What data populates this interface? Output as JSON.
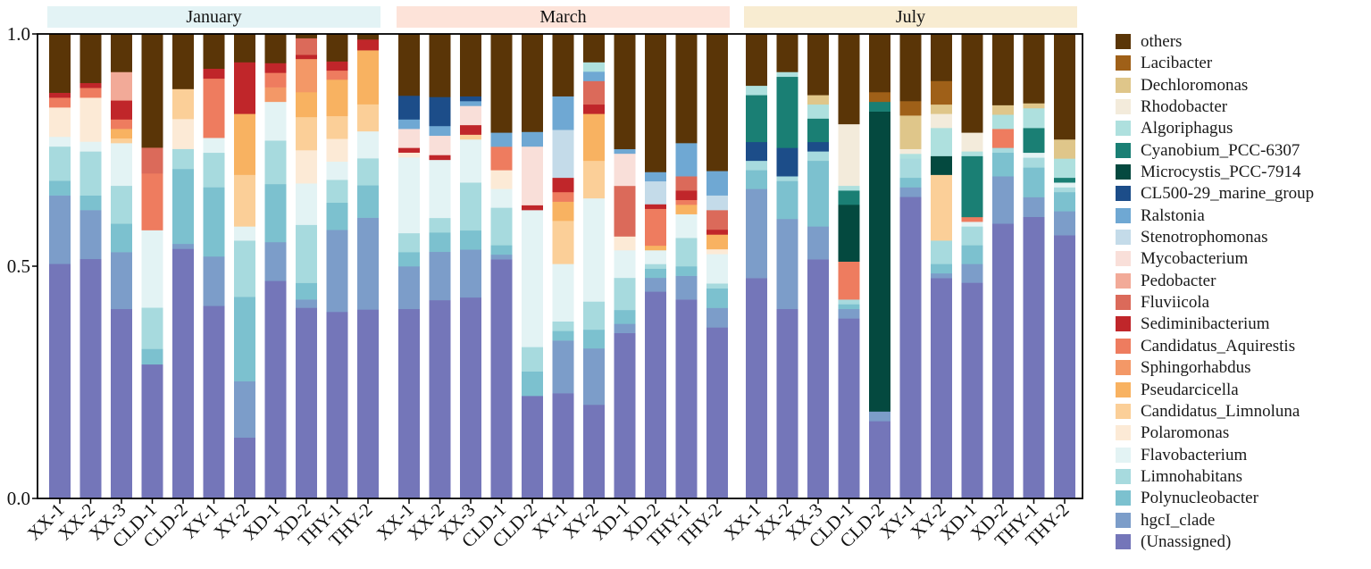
{
  "chart_data": {
    "type": "bar",
    "stacked": true,
    "ylim": [
      0,
      1
    ],
    "yticks": [
      "0.0",
      "0.5",
      "1.0"
    ],
    "panels": [
      "January",
      "March",
      "July"
    ],
    "categories": [
      "XX-1",
      "XX-2",
      "XX-3",
      "CLD-1",
      "CLD-2",
      "XY-1",
      "XY-2",
      "XD-1",
      "XD-2",
      "THY-1",
      "THY-2"
    ],
    "legend_position": "right",
    "grid": false,
    "series": [
      {
        "name": "(Unassigned)",
        "color": "#7476b9",
        "values": [
          [
            0.48,
            0.49,
            0.4,
            0.26,
            0.5,
            0.39,
            0.13,
            0.45,
            0.46,
            0.41,
            0.35
          ],
          [
            0.4,
            0.41,
            0.42,
            0.51,
            0.21,
            0.22,
            0.2,
            0.36,
            0.45,
            0.42,
            0.35
          ],
          [
            0.47,
            0.4,
            0.51,
            0.38,
            0.16,
            0.63,
            0.47,
            0.46,
            0.58,
            0.57,
            0.55
          ]
        ]
      },
      {
        "name": "hgcI_clade",
        "color": "#7c9dc9",
        "values": [
          [
            0.14,
            0.1,
            0.12,
            0.0,
            0.01,
            0.1,
            0.12,
            0.08,
            0.02,
            0.18,
            0.17
          ],
          [
            0.09,
            0.1,
            0.1,
            0.01,
            0.0,
            0.11,
            0.12,
            0.02,
            0.03,
            0.05,
            0.04
          ],
          [
            0.19,
            0.19,
            0.07,
            0.02,
            0.02,
            0.02,
            0.01,
            0.04,
            0.1,
            0.04,
            0.05
          ]
        ]
      },
      {
        "name": "Polynucleobacter",
        "color": "#7cc1cf",
        "values": [
          [
            0.03,
            0.03,
            0.06,
            0.03,
            0.15,
            0.14,
            0.18,
            0.12,
            0.04,
            0.06,
            0.06
          ],
          [
            0.03,
            0.04,
            0.04,
            0.02,
            0.05,
            0.02,
            0.04,
            0.03,
            0.02,
            0.02,
            0.04
          ],
          [
            0.04,
            0.08,
            0.14,
            0.01,
            0.0,
            0.02,
            0.02,
            0.04,
            0.05,
            0.06,
            0.04
          ]
        ]
      },
      {
        "name": "Limnohabitans",
        "color": "#a7dade",
        "values": [
          [
            0.07,
            0.09,
            0.08,
            0.08,
            0.04,
            0.07,
            0.12,
            0.09,
            0.14,
            0.05,
            0.05
          ],
          [
            0.04,
            0.03,
            0.1,
            0.08,
            0.05,
            0.02,
            0.06,
            0.07,
            0.01,
            0.06,
            0.01
          ],
          [
            0.02,
            0.01,
            0.02,
            0.01,
            0.0,
            0.04,
            0.05,
            0.04,
            0.01,
            0.02,
            0.01
          ]
        ]
      },
      {
        "name": "Flavobacterium",
        "color": "#e3f3f4",
        "values": [
          [
            0.02,
            0.02,
            0.09,
            0.15,
            0.0,
            0.03,
            0.03,
            0.08,
            0.1,
            0.04,
            0.05
          ],
          [
            0.16,
            0.12,
            0.09,
            0.04,
            0.28,
            0.12,
            0.22,
            0.06,
            0.03,
            0.05,
            0.06
          ],
          [
            0.0,
            0.0,
            0.0,
            0.0,
            0.0,
            0.0,
            0.0,
            0.01,
            0.0,
            0.01,
            0.01
          ]
        ]
      },
      {
        "name": "Polaromonas",
        "color": "#fcead6",
        "values": [
          [
            0.06,
            0.09,
            0.0,
            0.0,
            0.06,
            0.0,
            0.0,
            0.0,
            0.08,
            0.05,
            0.0
          ],
          [
            0.01,
            0.0,
            0.0,
            0.04,
            0.0,
            0.0,
            0.0,
            0.03,
            0.0,
            0.0,
            0.01
          ],
          [
            0.0,
            0.0,
            0.0,
            0.0,
            0.0,
            0.0,
            0.0,
            0.0,
            0.0,
            0.0,
            0.0
          ]
        ]
      },
      {
        "name": "Candidatus_Limnoluna",
        "color": "#fbcf98",
        "values": [
          [
            0.0,
            0.0,
            0.01,
            0.0,
            0.06,
            0.0,
            0.11,
            0.0,
            0.08,
            0.05,
            0.05
          ],
          [
            0.0,
            0.0,
            0.01,
            0.0,
            0.0,
            0.09,
            0.08,
            0.0,
            0.0,
            0.0,
            0.0
          ],
          [
            0.0,
            0.0,
            0.0,
            0.0,
            0.0,
            0.0,
            0.14,
            0.0,
            0.0,
            0.0,
            0.0
          ]
        ]
      },
      {
        "name": "Pseudarcicella",
        "color": "#f8b261",
        "values": [
          [
            0.0,
            0.0,
            0.02,
            0.0,
            0.0,
            0.0,
            0.13,
            0.0,
            0.06,
            0.08,
            0.1
          ],
          [
            0.0,
            0.0,
            0.0,
            0.0,
            0.0,
            0.04,
            0.1,
            0.0,
            0.01,
            0.02,
            0.03
          ],
          [
            0.0,
            0.0,
            0.0,
            0.0,
            0.0,
            0.0,
            0.0,
            0.0,
            0.0,
            0.0,
            0.0
          ]
        ]
      },
      {
        "name": "Sphingorhabdus",
        "color": "#f39867",
        "values": [
          [
            0.0,
            0.0,
            0.0,
            0.0,
            0.0,
            0.0,
            0.0,
            0.03,
            0.08,
            0.0,
            0.0
          ],
          [
            0.0,
            0.0,
            0.0,
            0.0,
            0.0,
            0.0,
            0.0,
            0.0,
            0.0,
            0.0,
            0.0
          ],
          [
            0.0,
            0.0,
            0.0,
            0.0,
            0.0,
            0.0,
            0.0,
            0.0,
            0.0,
            0.0,
            0.0
          ]
        ]
      },
      {
        "name": "Candidatus_Aquirestis",
        "color": "#ee7c5f",
        "values": [
          [
            0.02,
            0.02,
            0.02,
            0.11,
            0.0,
            0.12,
            0.0,
            0.03,
            0.0,
            0.02,
            0.0
          ],
          [
            0.0,
            0.0,
            0.0,
            0.05,
            0.0,
            0.02,
            0.0,
            0.0,
            0.08,
            0.01,
            0.0
          ],
          [
            0.0,
            0.0,
            0.0,
            0.08,
            0.0,
            0.0,
            0.0,
            0.01,
            0.04,
            0.0,
            0.0
          ]
        ]
      },
      {
        "name": "Sediminibacterium",
        "color": "#c0262a",
        "values": [
          [
            0.01,
            0.01,
            0.04,
            0.0,
            0.0,
            0.02,
            0.11,
            0.02,
            0.01,
            0.02,
            0.02
          ],
          [
            0.01,
            0.01,
            0.02,
            0.0,
            0.01,
            0.03,
            0.02,
            0.0,
            0.01,
            0.02,
            0.01
          ],
          [
            0.0,
            0.0,
            0.0,
            0.0,
            0.0,
            0.0,
            0.0,
            0.0,
            0.0,
            0.0,
            0.0
          ]
        ]
      },
      {
        "name": "Fluviicola",
        "color": "#db6a5a",
        "values": [
          [
            0.0,
            0.0,
            0.0,
            0.05,
            0.0,
            0.0,
            0.0,
            0.0,
            0.04,
            0.0,
            0.0
          ],
          [
            0.0,
            0.0,
            0.0,
            0.0,
            0.0,
            0.0,
            0.05,
            0.11,
            0.0,
            0.03,
            0.04
          ],
          [
            0.0,
            0.0,
            0.0,
            0.0,
            0.0,
            0.0,
            0.0,
            0.0,
            0.0,
            0.0,
            0.0
          ]
        ]
      },
      {
        "name": "Pedobacter",
        "color": "#f2aa98",
        "values": [
          [
            0.0,
            0.0,
            0.06,
            0.0,
            0.0,
            0.0,
            0.0,
            0.0,
            0.0,
            0.0,
            0.0
          ],
          [
            0.0,
            0.0,
            0.0,
            0.0,
            0.0,
            0.0,
            0.0,
            0.0,
            0.0,
            0.0,
            0.0
          ],
          [
            0.0,
            0.0,
            0.0,
            0.0,
            0.0,
            0.0,
            0.0,
            0.0,
            0.0,
            0.0,
            0.0
          ]
        ]
      },
      {
        "name": "Mycobacterium",
        "color": "#f9dfd9",
        "values": [
          [
            0.0,
            0.0,
            0.0,
            0.0,
            0.0,
            0.0,
            0.0,
            0.0,
            0.0,
            0.0,
            0.0
          ],
          [
            0.04,
            0.04,
            0.04,
            0.0,
            0.12,
            0.0,
            0.0,
            0.07,
            0.0,
            0.0,
            0.0
          ],
          [
            0.0,
            0.0,
            0.0,
            0.0,
            0.0,
            0.0,
            0.0,
            0.0,
            0.0,
            0.0,
            0.0
          ]
        ]
      },
      {
        "name": "Stenotrophomonas",
        "color": "#c4dbe9",
        "values": [
          [
            0.0,
            0.0,
            0.0,
            0.0,
            0.0,
            0.0,
            0.0,
            0.0,
            0.0,
            0.0,
            0.0
          ],
          [
            0.0,
            0.0,
            0.0,
            0.0,
            0.0,
            0.1,
            0.0,
            0.0,
            0.05,
            0.0,
            0.03
          ],
          [
            0.0,
            0.0,
            0.0,
            0.0,
            0.0,
            0.0,
            0.0,
            0.0,
            0.0,
            0.0,
            0.0
          ]
        ]
      },
      {
        "name": "Ralstonia",
        "color": "#6fa8d3",
        "values": [
          [
            0.0,
            0.0,
            0.0,
            0.0,
            0.0,
            0.0,
            0.0,
            0.0,
            0.0,
            0.0,
            0.0
          ],
          [
            0.02,
            0.02,
            0.01,
            0.03,
            0.03,
            0.07,
            0.02,
            0.01,
            0.02,
            0.07,
            0.05
          ],
          [
            0.0,
            0.0,
            0.0,
            0.0,
            0.0,
            0.0,
            0.0,
            0.0,
            0.0,
            0.0,
            0.0
          ]
        ]
      },
      {
        "name": "CL500-29_marine_group",
        "color": "#1c4d89",
        "values": [
          [
            0.0,
            0.0,
            0.0,
            0.0,
            0.0,
            0.0,
            0.0,
            0.0,
            0.0,
            0.0,
            0.0
          ],
          [
            0.05,
            0.06,
            0.01,
            0.0,
            0.0,
            0.0,
            0.0,
            0.0,
            0.0,
            0.0,
            0.0
          ],
          [
            0.04,
            0.06,
            0.02,
            0.0,
            0.0,
            0.0,
            0.0,
            0.0,
            0.0,
            0.0,
            0.0
          ]
        ]
      },
      {
        "name": "Microcystis_PCC-7914",
        "color": "#04493f",
        "values": [
          [
            0.0,
            0.0,
            0.0,
            0.0,
            0.0,
            0.0,
            0.0,
            0.0,
            0.0,
            0.0,
            0.0
          ],
          [
            0.0,
            0.0,
            0.0,
            0.0,
            0.0,
            0.0,
            0.0,
            0.0,
            0.0,
            0.0,
            0.0
          ],
          [
            0.0,
            0.0,
            0.0,
            0.12,
            0.62,
            0.0,
            0.04,
            0.0,
            0.0,
            0.0,
            0.0
          ]
        ]
      },
      {
        "name": "Cyanobium_PCC-6307",
        "color": "#1a7f74",
        "values": [
          [
            0.0,
            0.0,
            0.0,
            0.0,
            0.0,
            0.0,
            0.0,
            0.0,
            0.0,
            0.0,
            0.0
          ],
          [
            0.0,
            0.0,
            0.0,
            0.0,
            0.0,
            0.0,
            0.0,
            0.0,
            0.0,
            0.0,
            0.0
          ],
          [
            0.1,
            0.15,
            0.05,
            0.03,
            0.02,
            0.0,
            0.0,
            0.13,
            0.0,
            0.05,
            0.01
          ]
        ]
      },
      {
        "name": "Algoriphagus",
        "color": "#aee0de",
        "values": [
          [
            0.0,
            0.0,
            0.0,
            0.0,
            0.0,
            0.0,
            0.0,
            0.0,
            0.0,
            0.0,
            0.0
          ],
          [
            0.0,
            0.0,
            0.0,
            0.0,
            0.0,
            0.0,
            0.02,
            0.0,
            0.0,
            0.0,
            0.0
          ],
          [
            0.02,
            0.01,
            0.03,
            0.01,
            0.0,
            0.01,
            0.06,
            0.01,
            0.03,
            0.04,
            0.04
          ]
        ]
      },
      {
        "name": "Rhodobacter",
        "color": "#f3ebdb",
        "values": [
          [
            0.0,
            0.0,
            0.0,
            0.0,
            0.0,
            0.0,
            0.0,
            0.0,
            0.0,
            0.0,
            0.0
          ],
          [
            0.0,
            0.0,
            0.0,
            0.0,
            0.0,
            0.0,
            0.0,
            0.0,
            0.0,
            0.0,
            0.0
          ],
          [
            0.0,
            0.0,
            0.0,
            0.13,
            0.0,
            0.01,
            0.03,
            0.04,
            0.0,
            0.0,
            0.0
          ]
        ]
      },
      {
        "name": "Dechloromonas",
        "color": "#dfc68a",
        "values": [
          [
            0.0,
            0.0,
            0.0,
            0.0,
            0.0,
            0.0,
            0.0,
            0.0,
            0.0,
            0.0,
            0.0
          ],
          [
            0.0,
            0.0,
            0.0,
            0.0,
            0.0,
            0.0,
            0.0,
            0.0,
            0.0,
            0.0,
            0.0
          ],
          [
            0.0,
            0.0,
            0.02,
            0.0,
            0.0,
            0.07,
            0.02,
            0.0,
            0.02,
            0.01,
            0.04
          ]
        ]
      },
      {
        "name": "Lacibacter",
        "color": "#9f6018",
        "values": [
          [
            0.0,
            0.0,
            0.0,
            0.0,
            0.0,
            0.0,
            0.0,
            0.0,
            0.0,
            0.0,
            0.0
          ],
          [
            0.0,
            0.0,
            0.0,
            0.0,
            0.0,
            0.0,
            0.0,
            0.0,
            0.0,
            0.0,
            0.0
          ],
          [
            0.0,
            0.0,
            0.0,
            0.0,
            0.02,
            0.03,
            0.05,
            0.0,
            0.0,
            0.0,
            0.0
          ]
        ]
      },
      {
        "name": "others",
        "color": "#5a3507",
        "values": [
          [
            0.12,
            0.1,
            0.08,
            0.22,
            0.11,
            0.07,
            0.06,
            0.06,
            0.01,
            0.06,
            0.01
          ],
          [
            0.13,
            0.13,
            0.13,
            0.21,
            0.2,
            0.13,
            0.06,
            0.25,
            0.3,
            0.23,
            0.28
          ],
          [
            0.11,
            0.08,
            0.13,
            0.19,
            0.12,
            0.14,
            0.1,
            0.21,
            0.15,
            0.14,
            0.22
          ]
        ]
      }
    ]
  }
}
